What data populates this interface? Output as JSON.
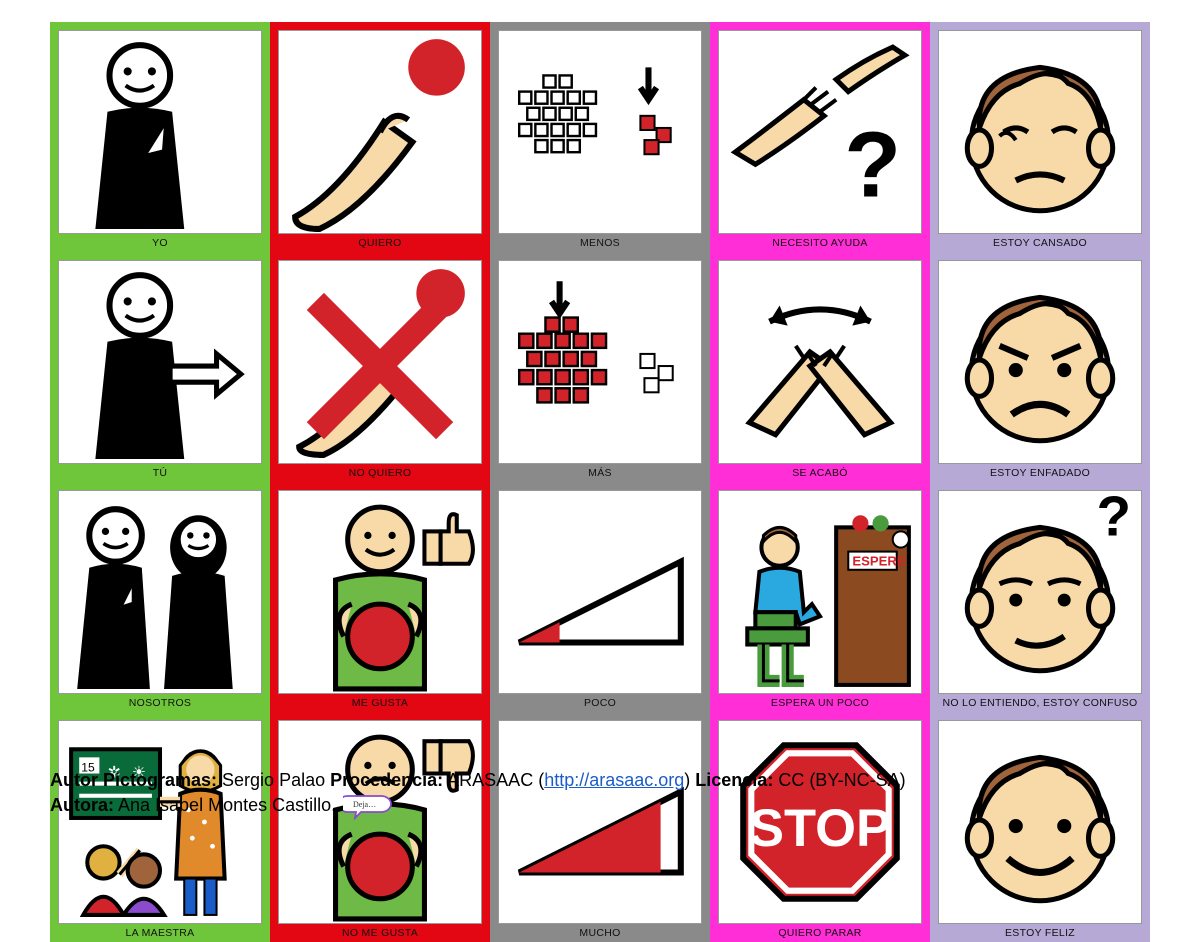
{
  "grid": {
    "rows": 4,
    "cols": 5,
    "column_colors": [
      "#6fc63b",
      "#e30613",
      "#8a8a8a",
      "#ff2ed6",
      "#b6a9d6"
    ],
    "font_family": "Trebuchet MS",
    "label_font_size": 10.5,
    "cells": [
      {
        "label": "YO",
        "icon": "yo"
      },
      {
        "label": "QUIERO",
        "icon": "quiero"
      },
      {
        "label": "MENOS",
        "icon": "menos"
      },
      {
        "label": "NECESITO AYUDA",
        "icon": "ayuda"
      },
      {
        "label": "ESTOY CANSADO",
        "icon": "cansado"
      },
      {
        "label": "TÚ",
        "icon": "tu"
      },
      {
        "label": "NO QUIERO",
        "icon": "noquiero"
      },
      {
        "label": "MÁS",
        "icon": "mas"
      },
      {
        "label": "SE ACABÓ",
        "icon": "seacabo"
      },
      {
        "label": "ESTOY ENFADADO",
        "icon": "enfadado"
      },
      {
        "label": "NOSOTROS",
        "icon": "nosotros"
      },
      {
        "label": "ME GUSTA",
        "icon": "megusta"
      },
      {
        "label": "POCO",
        "icon": "poco"
      },
      {
        "label": "ESPERA UN POCO",
        "icon": "espera"
      },
      {
        "label": "NO LO ENTIENDO, ESTOY CONFUSO",
        "icon": "confuso"
      },
      {
        "label": "LA MAESTRA",
        "icon": "maestra"
      },
      {
        "label": "NO ME GUSTA",
        "icon": "nomegusta"
      },
      {
        "label": "MUCHO",
        "icon": "mucho"
      },
      {
        "label": "QUIERO PARAR",
        "icon": "parar"
      },
      {
        "label": "ESTOY FELIZ",
        "icon": "feliz"
      }
    ]
  },
  "palette": {
    "skin": "#f8d9a8",
    "hair": "#a0643c",
    "green_shirt": "#6fb946",
    "red": "#d2232a",
    "blue": "#1a5cc8",
    "brown": "#8b4a1f",
    "teacher_dress": "#e08a2c",
    "black": "#000000",
    "white": "#ffffff"
  },
  "credits": {
    "autor_picto_label": "Autor Pictogramas:",
    "autor_picto": " Sergio Palao ",
    "procedencia_label": "Procedencia:",
    "procedencia": " ARASAAC (",
    "url": "http://arasaac.org",
    "procedencia_close": ") ",
    "licencia_label": "Licencia:",
    "licencia": " CC (BY-NC-SA)",
    "autora_label": "Autora:",
    "autora": " Ana Isabel Montes Castillo."
  }
}
